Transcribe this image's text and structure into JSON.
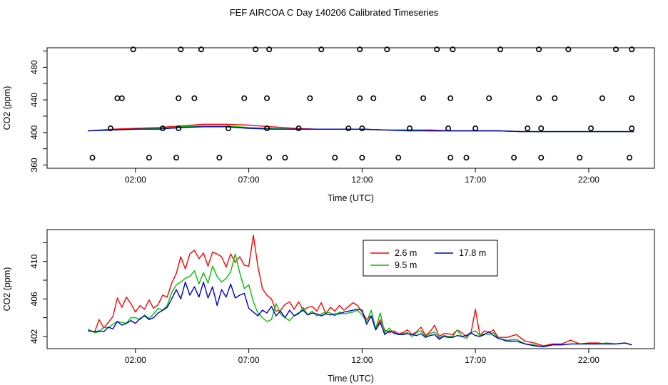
{
  "title": "FEF AIRCOA C  Day 140206  Calibrated Timeseries",
  "chart_data": [
    {
      "type": "line",
      "panel": "top",
      "xlabel": "Time (UTC)",
      "ylabel": "CO2 (ppm)",
      "x_unit": "hours UTC",
      "xlim": [
        -1.9,
        24.9
      ],
      "ylim": [
        356,
        504
      ],
      "x_ticks": [
        2,
        7,
        12,
        17,
        22
      ],
      "x_tick_labels": [
        "02:00",
        "07:00",
        "12:00",
        "17:00",
        "22:00"
      ],
      "y_ticks": [
        360,
        400,
        440,
        480
      ],
      "y_tick_labels": [
        "360",
        "400",
        "440",
        "480"
      ],
      "y_minor_ticks": [
        380,
        420,
        460,
        500
      ],
      "series": [
        {
          "name": "2.6 m",
          "color": "#ff0000",
          "x": [
            -0.1,
            1,
            2,
            3,
            4,
            5,
            6,
            7,
            8,
            9,
            10,
            11,
            12,
            13,
            14,
            15,
            16,
            17,
            18,
            19,
            20,
            21,
            22,
            23,
            24
          ],
          "y": [
            402,
            404,
            405,
            406,
            408,
            410,
            410,
            409,
            407,
            405,
            404,
            404,
            404,
            403,
            403,
            403,
            402,
            402,
            402,
            401,
            401,
            401,
            401,
            401,
            401
          ]
        },
        {
          "name": "9.5 m",
          "color": "#00c000",
          "x": [
            -0.1,
            1,
            2,
            3,
            4,
            5,
            6,
            7,
            8,
            9,
            10,
            11,
            12,
            13,
            14,
            15,
            16,
            17,
            18,
            19,
            20,
            21,
            22,
            23,
            24
          ],
          "y": [
            402,
            403,
            404,
            405,
            407,
            408,
            408,
            406,
            405,
            404,
            404,
            404,
            404,
            403,
            403,
            402,
            402,
            402,
            402,
            401,
            401,
            401,
            401,
            401,
            401
          ]
        },
        {
          "name": "17.8 m",
          "color": "#0000cc",
          "x": [
            -0.1,
            1,
            2,
            3,
            4,
            5,
            6,
            7,
            8,
            9,
            10,
            11,
            12,
            13,
            14,
            15,
            16,
            17,
            18,
            19,
            20,
            21,
            22,
            23,
            24
          ],
          "y": [
            402,
            403,
            404,
            404,
            406,
            407,
            407,
            405,
            404,
            404,
            404,
            404,
            404,
            403,
            402,
            402,
            402,
            402,
            402,
            401,
            401,
            401,
            401,
            401,
            401
          ]
        }
      ],
      "markers": {
        "color": "#000000",
        "x": [
          0.1,
          0.9,
          1.2,
          1.9,
          1.4,
          2.6,
          3.2,
          3.8,
          3.9,
          3.9,
          4.0,
          4.6,
          4.9,
          5.7,
          6.1,
          6.8,
          7.3,
          7.8,
          7.8,
          7.9,
          7.9,
          8.6,
          9.2,
          9.7,
          10.2,
          10.8,
          11.4,
          11.9,
          11.9,
          12.0,
          12.0,
          12.5,
          13.1,
          13.6,
          14.1,
          14.7,
          15.3,
          15.8,
          15.9,
          15.9,
          16.0,
          16.6,
          17.0,
          17.6,
          18.1,
          18.7,
          19.3,
          19.8,
          19.8,
          19.9,
          19.9,
          20.5,
          21.1,
          21.6,
          22.1,
          22.6,
          23.2,
          23.8,
          23.9,
          23.9,
          23.9
        ],
        "y": [
          369,
          405,
          442,
          502,
          442,
          369,
          405,
          369,
          405,
          442,
          502,
          442,
          502,
          369,
          405,
          442,
          502,
          405,
          442,
          369,
          502,
          369,
          405,
          442,
          502,
          369,
          405,
          442,
          502,
          369,
          405,
          442,
          502,
          369,
          405,
          442,
          502,
          405,
          442,
          369,
          502,
          369,
          405,
          442,
          502,
          369,
          405,
          442,
          502,
          369,
          405,
          442,
          502,
          369,
          405,
          442,
          502,
          369,
          405,
          442,
          502
        ]
      }
    },
    {
      "type": "line",
      "panel": "bottom",
      "xlabel": "Time (UTC)",
      "ylabel": "CO2 (ppm)",
      "x_unit": "hours UTC",
      "xlim": [
        -1.9,
        24.9
      ],
      "ylim": [
        400.7,
        413.4
      ],
      "x_ticks": [
        2,
        7,
        12,
        17,
        22
      ],
      "x_tick_labels": [
        "02:00",
        "07:00",
        "12:00",
        "17:00",
        "22:00"
      ],
      "y_ticks": [
        402,
        406,
        410
      ],
      "y_tick_labels": [
        "402",
        "406",
        "410"
      ],
      "y_minor_ticks": [
        404,
        408,
        412
      ],
      "legend": {
        "position": "top-right",
        "entries": [
          "2.6 m",
          "17.8 m",
          "9.5 m"
        ]
      },
      "series": [
        {
          "name": "2.6 m",
          "color": "#ff0000",
          "x": [
            -0.1,
            0.2,
            0.4,
            0.6,
            0.8,
            1.0,
            1.2,
            1.4,
            1.6,
            1.8,
            2.0,
            2.2,
            2.4,
            2.6,
            2.8,
            3.0,
            3.2,
            3.4,
            3.6,
            3.8,
            4.0,
            4.2,
            4.4,
            4.6,
            4.8,
            5.0,
            5.2,
            5.4,
            5.6,
            5.8,
            6.0,
            6.2,
            6.4,
            6.6,
            6.8,
            7.0,
            7.2,
            7.4,
            7.6,
            7.8,
            8.0,
            8.2,
            8.4,
            8.6,
            8.8,
            9.0,
            9.2,
            9.4,
            9.6,
            9.8,
            10.0,
            10.2,
            10.4,
            10.6,
            10.8,
            11.0,
            11.2,
            11.4,
            11.6,
            11.8,
            12.0,
            12.2,
            12.4,
            12.6,
            12.8,
            13.0,
            13.2,
            13.4,
            13.6,
            13.8,
            14.0,
            14.2,
            14.4,
            14.6,
            14.8,
            15.0,
            15.2,
            15.4,
            15.6,
            15.8,
            16.0,
            16.2,
            16.4,
            16.6,
            16.8,
            17.0,
            17.2,
            17.4,
            17.6,
            17.8,
            18.0,
            18.4,
            18.8,
            19.2,
            19.6,
            20.0,
            20.4,
            20.8,
            21.2,
            21.6,
            22.0,
            22.4,
            22.8,
            23.2,
            23.6,
            23.9
          ],
          "y": [
            402.6,
            402.5,
            403.8,
            402.9,
            403.5,
            404.1,
            406.1,
            405.1,
            406.2,
            405.5,
            404.6,
            405.3,
            404.9,
            405.9,
            405.0,
            405.4,
            406.4,
            406.2,
            407.7,
            408.7,
            410.5,
            409.2,
            410.8,
            411.2,
            410.3,
            410.9,
            409.5,
            411.0,
            410.8,
            410.5,
            409.4,
            410.8,
            409.9,
            410.5,
            409.6,
            409.5,
            412.8,
            409.5,
            407.1,
            406.4,
            406.0,
            404.7,
            404.8,
            405.4,
            405.7,
            404.9,
            405.7,
            404.8,
            405.1,
            405.2,
            404.7,
            405.6,
            404.4,
            405.1,
            404.7,
            405.3,
            404.8,
            405.2,
            405.6,
            405.3,
            404.6,
            403.8,
            404.2,
            402.7,
            403.8,
            402.7,
            402.4,
            402.6,
            402.3,
            402.4,
            402.7,
            402.2,
            402.5,
            403.0,
            402.1,
            402.5,
            403.2,
            402.0,
            402.3,
            402.3,
            402.2,
            402.7,
            402.4,
            402.0,
            402.3,
            404.9,
            402.1,
            402.6,
            402.4,
            402.7,
            401.9,
            401.9,
            402.2,
            401.5,
            401.3,
            401.0,
            401.2,
            401.2,
            401.6,
            401.2,
            401.3,
            401.3,
            401.2,
            401.2,
            401.3,
            401.1
          ]
        },
        {
          "name": "9.5 m",
          "color": "#00c000",
          "x": [
            -0.1,
            0.2,
            0.4,
            0.6,
            0.8,
            1.0,
            1.2,
            1.4,
            1.6,
            1.8,
            2.0,
            2.2,
            2.4,
            2.6,
            2.8,
            3.0,
            3.2,
            3.4,
            3.6,
            3.8,
            4.0,
            4.2,
            4.4,
            4.6,
            4.8,
            5.0,
            5.2,
            5.4,
            5.6,
            5.8,
            6.0,
            6.2,
            6.4,
            6.6,
            6.8,
            7.0,
            7.2,
            7.4,
            7.6,
            7.8,
            8.0,
            8.2,
            8.4,
            8.6,
            8.8,
            9.0,
            9.2,
            9.4,
            9.6,
            9.8,
            10.0,
            10.2,
            10.4,
            10.6,
            10.8,
            11.0,
            11.2,
            11.4,
            11.6,
            11.8,
            12.0,
            12.2,
            12.4,
            12.6,
            12.8,
            13.0,
            13.2,
            13.4,
            13.6,
            13.8,
            14.0,
            14.2,
            14.4,
            14.6,
            14.8,
            15.0,
            15.2,
            15.4,
            15.6,
            15.8,
            16.0,
            16.2,
            16.4,
            16.6,
            16.8,
            17.0,
            17.2,
            17.4,
            17.6,
            17.8,
            18.0,
            18.4,
            18.8,
            19.2,
            19.6,
            20.0,
            20.4,
            20.8,
            21.2,
            21.6,
            22.0,
            22.4,
            22.8,
            23.2,
            23.6,
            23.9
          ],
          "y": [
            402.8,
            402.4,
            402.5,
            403.0,
            402.9,
            403.3,
            403.6,
            403.5,
            403.4,
            404.0,
            404.0,
            403.8,
            404.3,
            403.9,
            404.4,
            405.0,
            404.8,
            405.3,
            406.7,
            407.5,
            407.8,
            408.2,
            408.4,
            409.0,
            407.6,
            408.8,
            407.7,
            409.5,
            408.4,
            407.8,
            408.2,
            408.9,
            410.8,
            408.8,
            407.1,
            407.5,
            405.7,
            404.5,
            404.0,
            403.6,
            403.8,
            405.5,
            404.4,
            404.0,
            403.7,
            404.2,
            404.4,
            405.1,
            404.3,
            404.7,
            404.2,
            404.4,
            404.6,
            404.5,
            404.2,
            404.6,
            404.4,
            404.5,
            404.6,
            404.8,
            404.3,
            403.6,
            404.8,
            402.8,
            404.5,
            402.4,
            402.9,
            402.3,
            402.3,
            402.3,
            402.4,
            402.0,
            402.4,
            402.6,
            402.0,
            402.3,
            402.5,
            401.8,
            402.1,
            402.0,
            402.0,
            402.7,
            402.0,
            401.8,
            402.4,
            402.6,
            402.1,
            402.3,
            402.2,
            402.4,
            401.8,
            401.6,
            401.7,
            401.2,
            401.1,
            400.9,
            401.1,
            401.1,
            401.2,
            401.2,
            401.2,
            401.2,
            401.3,
            401.2,
            401.3,
            401.1
          ]
        },
        {
          "name": "17.8 m",
          "color": "#0000cc",
          "x": [
            -0.1,
            0.2,
            0.4,
            0.6,
            0.8,
            1.0,
            1.2,
            1.4,
            1.6,
            1.8,
            2.0,
            2.2,
            2.4,
            2.6,
            2.8,
            3.0,
            3.2,
            3.4,
            3.6,
            3.8,
            4.0,
            4.2,
            4.4,
            4.6,
            4.8,
            5.0,
            5.2,
            5.4,
            5.6,
            5.8,
            6.0,
            6.2,
            6.4,
            6.6,
            6.8,
            7.0,
            7.2,
            7.4,
            7.6,
            7.8,
            8.0,
            8.2,
            8.4,
            8.6,
            8.8,
            9.0,
            9.2,
            9.4,
            9.6,
            9.8,
            10.0,
            10.2,
            10.4,
            10.6,
            10.8,
            11.0,
            11.2,
            11.4,
            11.6,
            11.8,
            12.0,
            12.2,
            12.4,
            12.6,
            12.8,
            13.0,
            13.2,
            13.4,
            13.6,
            13.8,
            14.0,
            14.2,
            14.4,
            14.6,
            14.8,
            15.0,
            15.2,
            15.4,
            15.6,
            15.8,
            16.0,
            16.2,
            16.4,
            16.6,
            16.8,
            17.0,
            17.2,
            17.4,
            17.6,
            17.8,
            18.0,
            18.4,
            18.8,
            19.2,
            19.6,
            20.0,
            20.4,
            20.8,
            21.2,
            21.6,
            22.0,
            22.4,
            22.8,
            23.2,
            23.6,
            23.9
          ],
          "y": [
            402.6,
            402.5,
            402.6,
            402.5,
            403.0,
            402.8,
            403.6,
            403.2,
            403.4,
            403.7,
            403.4,
            403.9,
            404.2,
            403.8,
            404.0,
            404.5,
            404.8,
            405.1,
            406.0,
            407.0,
            406.0,
            407.8,
            406.4,
            407.3,
            406.2,
            407.8,
            406.1,
            407.3,
            405.3,
            407.0,
            406.2,
            407.6,
            406.1,
            406.4,
            406.6,
            405.0,
            404.6,
            404.2,
            404.8,
            404.5,
            405.2,
            404.2,
            404.7,
            404.0,
            404.8,
            404.2,
            404.5,
            404.8,
            404.3,
            404.5,
            404.4,
            404.2,
            404.4,
            404.3,
            404.4,
            404.4,
            404.6,
            404.7,
            404.8,
            404.9,
            404.8,
            403.3,
            404.2,
            402.7,
            403.5,
            402.2,
            402.6,
            402.4,
            402.2,
            402.2,
            402.3,
            402.2,
            402.1,
            402.3,
            401.9,
            402.1,
            402.2,
            401.7,
            402.0,
            401.9,
            401.9,
            402.1,
            402.0,
            402.1,
            402.4,
            402.1,
            402.0,
            402.2,
            402.5,
            402.1,
            401.8,
            401.5,
            401.5,
            401.2,
            401.0,
            400.9,
            401.1,
            401.1,
            401.2,
            401.2,
            401.2,
            401.2,
            401.2,
            401.2,
            401.3,
            401.1
          ]
        }
      ]
    }
  ]
}
